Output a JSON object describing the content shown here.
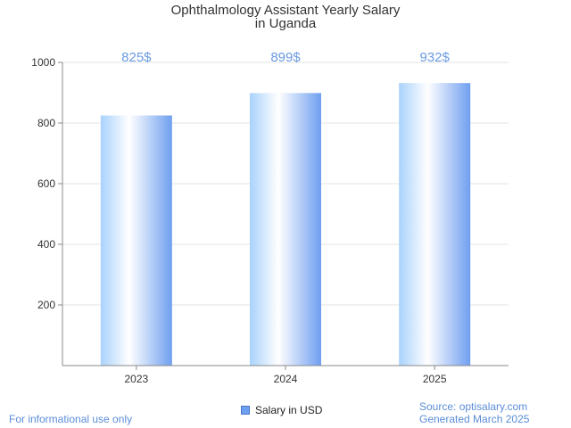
{
  "chart_data": {
    "type": "bar",
    "title_line1": "Ophthalmology Assistant Yearly Salary",
    "title_line2": "in Uganda",
    "categories": [
      "2023",
      "2024",
      "2025"
    ],
    "series": [
      {
        "name": "Salary in USD",
        "values": [
          825,
          899,
          932
        ]
      }
    ],
    "data_labels": [
      "825$",
      "899$",
      "932$"
    ],
    "y_ticks": [
      200,
      400,
      600,
      800,
      1000
    ],
    "ylim": [
      0,
      1000
    ],
    "grid": true,
    "legend_position": "bottom-center",
    "bar_color": "#6f9ff0",
    "label_color": "#6a9be0"
  },
  "footer": {
    "disclaimer": "For informational use only",
    "source": "Source: optisalary.com",
    "generated": "Generated March 2025"
  }
}
